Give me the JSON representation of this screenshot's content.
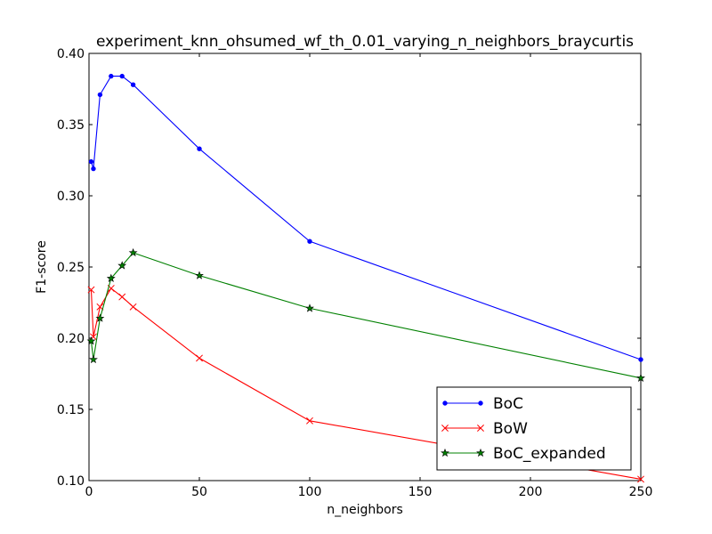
{
  "chart_data": {
    "type": "line",
    "title": "experiment_knn_ohsumed_wf_th_0.01_varying_n_neighbors_braycurtis",
    "xlabel": "n_neighbors",
    "ylabel": "F1-score",
    "xlim": [
      0,
      250
    ],
    "ylim": [
      0.1,
      0.4
    ],
    "xticks": [
      0,
      50,
      100,
      150,
      200,
      250
    ],
    "xtick_labels": [
      "0",
      "50",
      "100",
      "150",
      "200",
      "250"
    ],
    "yticks": [
      0.1,
      0.15,
      0.2,
      0.25,
      0.3,
      0.35,
      0.4
    ],
    "ytick_labels": [
      "0.10",
      "0.15",
      "0.20",
      "0.25",
      "0.30",
      "0.35",
      "0.40"
    ],
    "grid": false,
    "legend_position": "lower right",
    "series": [
      {
        "name": "BoC",
        "color": "#0000ff",
        "marker": "dot",
        "x": [
          1,
          2,
          5,
          10,
          15,
          20,
          50,
          100,
          250
        ],
        "y": [
          0.324,
          0.319,
          0.371,
          0.384,
          0.384,
          0.378,
          0.333,
          0.268,
          0.185
        ]
      },
      {
        "name": "BoW",
        "color": "#ff0000",
        "marker": "x",
        "x": [
          1,
          2,
          5,
          10,
          15,
          20,
          50,
          100,
          250
        ],
        "y": [
          0.234,
          0.201,
          0.222,
          0.235,
          0.229,
          0.222,
          0.186,
          0.142,
          0.101
        ]
      },
      {
        "name": "BoC_expanded",
        "color": "#008000",
        "marker": "star",
        "x": [
          1,
          2,
          5,
          10,
          15,
          20,
          50,
          100,
          250
        ],
        "y": [
          0.198,
          0.185,
          0.214,
          0.242,
          0.251,
          0.26,
          0.244,
          0.221,
          0.172
        ]
      }
    ]
  }
}
